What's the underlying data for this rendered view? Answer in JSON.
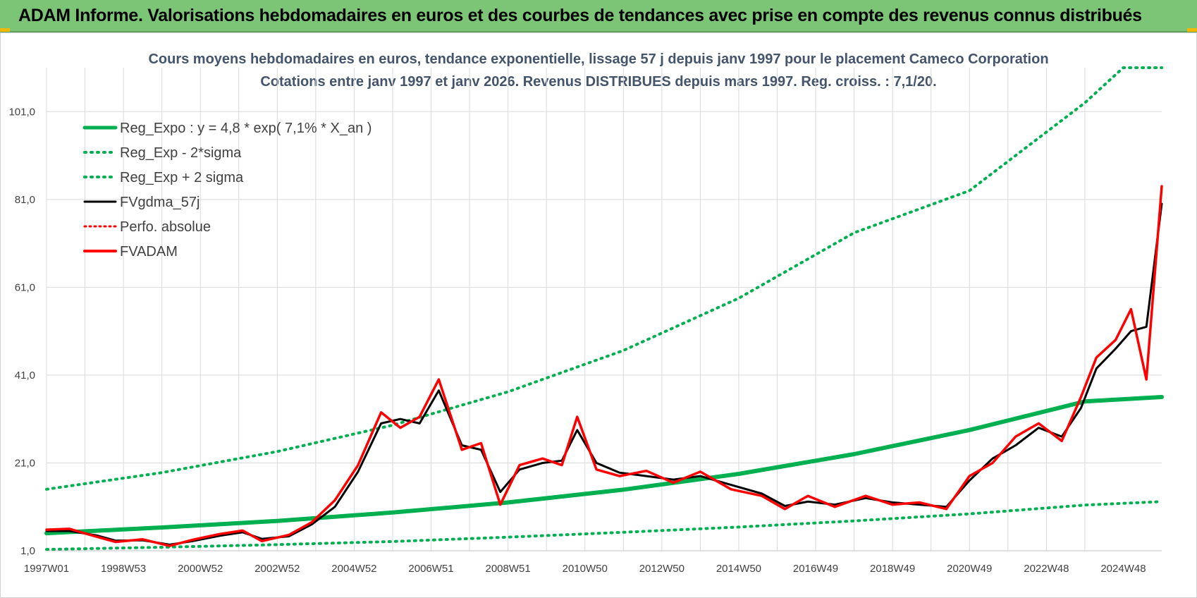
{
  "banner": {
    "title": "ADAM Informe. Valorisations hebdomadaires en euros et des courbes de tendances avec prise en compte des revenus connus distribués"
  },
  "colors": {
    "banner": "#7cc576",
    "trend": "#00b050",
    "smooth": "#000000",
    "fvadam": "#ff0000",
    "title": "#44546a"
  },
  "chart_data": {
    "type": "line",
    "title_lines": [
      "Cours moyens hebdomadaires en euros, tendance exponentielle, lissage 57 j depuis janv 1997 pour le placement Cameco Corporation",
      "Cotations entre janv 1997 et janv 2026. Revenus DISTRIBUES depuis mars 1997. Reg. croiss. : 7,1/20."
    ],
    "x_range": [
      1997.0,
      2026.0
    ],
    "y_range": [
      1.0,
      111.0
    ],
    "y_ticks": [
      "1,0",
      "21,0",
      "41,0",
      "61,0",
      "81,0",
      "101,0"
    ],
    "x_ticks": [
      "1997W01",
      "1998W53",
      "2000W52",
      "2002W52",
      "2004W52",
      "2006W51",
      "2008W51",
      "2010W50",
      "2012W50",
      "2014W50",
      "2016W49",
      "2018W49",
      "2020W49",
      "2022W48",
      "2024W48"
    ],
    "gridlines": "both",
    "legend_position": "top-left",
    "legend": [
      {
        "label": "Reg_Expo : y = 4,8 * exp( 7,1% *  X_an )",
        "style": "solid-green-thick"
      },
      {
        "label": "Reg_Exp - 2*sigma",
        "style": "dotted-green"
      },
      {
        "label": "Reg_Exp + 2 sigma",
        "style": "dotted-green"
      },
      {
        "label": "FVgdma_57j",
        "style": "solid-black"
      },
      {
        "label": "Perfo. absolue",
        "style": "dotted-red"
      },
      {
        "label": "FVADAM",
        "style": "solid-red"
      }
    ],
    "series": [
      {
        "name": "Reg_Expo : y = 4,8 * exp( 7,1% *  X_an )",
        "x": [
          1997,
          2000,
          2003,
          2006,
          2009,
          2012,
          2015,
          2018,
          2021,
          2024,
          2026
        ],
        "y": [
          5.0,
          6.3,
          7.8,
          9.7,
          12.0,
          14.9,
          18.5,
          23.0,
          28.5,
          35.0,
          36.0
        ]
      },
      {
        "name": "Reg_Exp - 2*sigma",
        "x": [
          1997,
          2000,
          2003,
          2006,
          2009,
          2012,
          2015,
          2018,
          2021,
          2024,
          2026
        ],
        "y": [
          1.3,
          1.8,
          2.4,
          3.1,
          4.1,
          5.2,
          6.4,
          7.8,
          9.4,
          11.4,
          12.2
        ]
      },
      {
        "name": "Reg_Exp + 2 sigma",
        "x": [
          1997,
          2000,
          2003,
          2006,
          2009,
          2012,
          2015,
          2018,
          2021,
          2024,
          2025,
          2026
        ],
        "y": [
          15.0,
          18.8,
          23.6,
          29.6,
          37.2,
          46.6,
          58.5,
          73.4,
          83.0,
          103.0,
          111.0,
          111.0
        ]
      },
      {
        "name": "FVgdma_57j",
        "x": [
          1997.0,
          1997.6,
          1998.3,
          1998.8,
          1999.5,
          2000.2,
          2000.8,
          2001.5,
          2002.1,
          2002.6,
          2003.3,
          2003.9,
          2004.5,
          2005.1,
          2005.7,
          2006.2,
          2006.7,
          2007.2,
          2007.8,
          2008.3,
          2008.8,
          2009.3,
          2009.9,
          2010.4,
          2010.8,
          2011.3,
          2011.9,
          2012.6,
          2013.3,
          2014.0,
          2014.8,
          2015.6,
          2016.2,
          2016.8,
          2017.5,
          2018.3,
          2019.0,
          2019.7,
          2020.4,
          2021.0,
          2021.6,
          2022.2,
          2022.8,
          2023.4,
          2023.9,
          2024.3,
          2024.8,
          2025.2,
          2025.6,
          2026.0
        ],
        "y": [
          5.5,
          5.5,
          4.5,
          3.3,
          3.4,
          2.4,
          3.2,
          4.4,
          5.2,
          3.7,
          4.3,
          7.0,
          11.0,
          19.0,
          30.0,
          31.0,
          30.0,
          37.5,
          25.0,
          24.0,
          14.4,
          19.5,
          21.0,
          21.5,
          28.5,
          21.0,
          18.8,
          18.0,
          17.2,
          18.0,
          16.0,
          14.0,
          11.2,
          12.2,
          11.5,
          13.0,
          12.0,
          11.5,
          11.0,
          17.0,
          22.0,
          25.0,
          29.0,
          27.0,
          33.5,
          42.5,
          47.0,
          51.0,
          52.0,
          80.0
        ]
      },
      {
        "name": "FVADAM",
        "x": [
          1997.0,
          1997.6,
          1998.3,
          1998.8,
          1999.5,
          2000.2,
          2000.8,
          2001.5,
          2002.1,
          2002.6,
          2003.3,
          2003.9,
          2004.5,
          2005.1,
          2005.7,
          2006.2,
          2006.7,
          2007.2,
          2007.8,
          2008.3,
          2008.8,
          2009.3,
          2009.9,
          2010.4,
          2010.8,
          2011.3,
          2011.9,
          2012.6,
          2013.3,
          2014.0,
          2014.8,
          2015.6,
          2016.2,
          2016.8,
          2017.5,
          2018.3,
          2019.0,
          2019.7,
          2020.4,
          2021.0,
          2021.6,
          2022.2,
          2022.8,
          2023.4,
          2023.9,
          2024.3,
          2024.8,
          2025.2,
          2025.6,
          2026.0
        ],
        "y": [
          5.8,
          6.0,
          4.2,
          3.0,
          3.6,
          2.1,
          3.5,
          4.8,
          5.6,
          3.2,
          4.6,
          7.5,
          12.5,
          20.5,
          32.5,
          29.0,
          31.5,
          40.0,
          24.0,
          25.5,
          11.5,
          20.5,
          22.0,
          20.5,
          31.5,
          19.5,
          18.0,
          19.2,
          16.5,
          19.0,
          15.0,
          13.5,
          10.5,
          13.5,
          11.0,
          13.5,
          11.5,
          12.0,
          10.5,
          18.0,
          21.0,
          27.0,
          30.0,
          26.0,
          36.0,
          45.0,
          49.0,
          56.0,
          40.0,
          84.0
        ]
      }
    ]
  }
}
